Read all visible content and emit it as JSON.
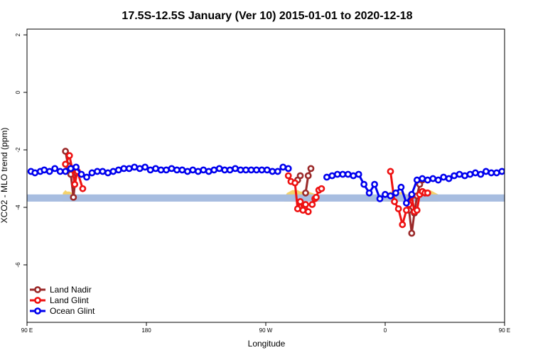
{
  "chart_data": {
    "type": "line",
    "title": "17.5S-12.5S January (Ver 10)   2015-01-01 to 2020-12-18",
    "xlabel": "Longitude",
    "ylabel": "XCO2 - MLO trend (ppm)",
    "xlim": [
      90,
      450
    ],
    "ylim": [
      -8,
      2.2
    ],
    "x_ticks": [
      {
        "value": 90,
        "label": "90 E"
      },
      {
        "value": 180,
        "label": "180"
      },
      {
        "value": 270,
        "label": "90 W"
      },
      {
        "value": 360,
        "label": "0"
      },
      {
        "value": 450,
        "label": "90 E"
      },
      {
        "value": 540,
        "label": "180"
      }
    ],
    "y_ticks": [
      {
        "value": 2,
        "label": "2"
      },
      {
        "value": 0,
        "label": "0"
      },
      {
        "value": -2,
        "label": "-2"
      },
      {
        "value": -4,
        "label": "-4"
      },
      {
        "value": -6,
        "label": "-6"
      }
    ],
    "legend_position": "bottom-left",
    "band": {
      "ymin": -3.8,
      "ymax": -3.55,
      "color": "#a7bde0"
    },
    "highlight_color": "#f5d26b",
    "highlight_regions": [
      {
        "x": [
          117,
          119,
          120,
          122,
          124,
          126
        ],
        "top": [
          -3.5,
          -3.4,
          -3.45,
          -3.45,
          -3.5,
          -3.55
        ]
      },
      {
        "x": [
          284,
          286,
          288,
          290,
          292,
          294,
          296,
          298,
          300,
          302,
          305,
          308
        ],
        "top": [
          -3.65,
          -3.5,
          -3.45,
          -3.4,
          -3.4,
          -3.4,
          -3.45,
          -3.45,
          -3.4,
          -3.45,
          -3.5,
          -3.55
        ]
      },
      {
        "x": [
          360,
          362,
          364,
          366,
          368,
          370,
          372,
          374,
          376
        ],
        "top": [
          -3.55,
          -3.5,
          -3.45,
          -3.45,
          -3.5,
          -3.5,
          -3.45,
          -3.5,
          -3.55
        ]
      },
      {
        "x": [
          388,
          390,
          392,
          394,
          396,
          398,
          400
        ],
        "top": [
          -3.55,
          -3.5,
          -3.45,
          -3.4,
          -3.45,
          -3.5,
          -3.55
        ]
      },
      {
        "x": [
          484,
          486,
          488,
          490,
          492
        ],
        "top": [
          -3.5,
          -3.45,
          -3.45,
          -3.5,
          -3.55
        ]
      }
    ],
    "series": [
      {
        "name": "Land Nadir",
        "color": "#9b2a2a",
        "segments": [
          {
            "x": [
              119,
              121,
              123,
              125,
              127
            ],
            "y": [
              -2.05,
              -2.55,
              -2.85,
              -3.65,
              -2.8
            ]
          },
          {
            "x": [
              294,
              296
            ],
            "y": [
              -3.05,
              -2.9
            ]
          },
          {
            "x": [
              300,
              302,
              304
            ],
            "y": [
              -3.5,
              -2.9,
              -2.65
            ]
          },
          {
            "x": [
              378,
              380,
              382,
              384,
              386,
              388
            ],
            "y": [
              -4.1,
              -4.9,
              -4.2,
              -3.6,
              -3.2,
              -3.05
            ]
          },
          {
            "x": [
              459,
              461,
              463,
              465,
              467
            ],
            "y": [
              -2.05,
              -2.55,
              -2.85,
              -3.65,
              -2.8
            ]
          }
        ]
      },
      {
        "name": "Land Glint",
        "color": "#ee1111",
        "segments": [
          {
            "x": [
              119,
              122,
              124,
              126,
              128,
              132
            ],
            "y": [
              -2.5,
              -2.2,
              -2.65,
              -3.2,
              -2.75,
              -3.35
            ]
          },
          {
            "x": [
              287,
              289,
              292,
              294,
              296,
              298,
              300,
              302
            ],
            "y": [
              -2.9,
              -3.1,
              -3.15,
              -4.05,
              -3.8,
              -4.1,
              -3.9,
              -4.15
            ]
          },
          {
            "x": [
              305,
              307,
              308,
              310,
              312
            ],
            "y": [
              -3.9,
              -3.7,
              -3.65,
              -3.4,
              -3.35
            ]
          },
          {
            "x": [
              364,
              367,
              370,
              373,
              376,
              378,
              380,
              382,
              384,
              386,
              388
            ],
            "y": [
              -2.75,
              -3.8,
              -4.05,
              -4.6,
              -4.1,
              -3.9,
              -3.6,
              -4.15,
              -4.1,
              -3.55,
              -3.45
            ]
          },
          {
            "x": [
              388,
              390,
              392
            ],
            "y": [
              -3.45,
              -3.5,
              -3.5
            ]
          },
          {
            "x": [
              462,
              464,
              466,
              467,
              469,
              471,
              473
            ],
            "y": [
              -2.5,
              -2.2,
              -2.65,
              -3.2,
              -2.75,
              -2.85,
              -3.35
            ]
          }
        ]
      },
      {
        "name": "Ocean Glint",
        "color": "#0000ee",
        "segments": [
          {
            "x": [
              93,
              96,
              100,
              103,
              107,
              111,
              115,
              119,
              123,
              127,
              131,
              135,
              139,
              143,
              147,
              151,
              155,
              159,
              163,
              167,
              171,
              175,
              179,
              183,
              187,
              191,
              195,
              199,
              203,
              207,
              211,
              215,
              219,
              223,
              227,
              231,
              235,
              239,
              243,
              247,
              251,
              255,
              259,
              263,
              267,
              271,
              275,
              279,
              283,
              287
            ],
            "y": [
              -2.75,
              -2.8,
              -2.75,
              -2.7,
              -2.75,
              -2.65,
              -2.75,
              -2.75,
              -2.65,
              -2.6,
              -2.85,
              -2.95,
              -2.8,
              -2.75,
              -2.75,
              -2.8,
              -2.75,
              -2.7,
              -2.65,
              -2.65,
              -2.6,
              -2.65,
              -2.6,
              -2.7,
              -2.65,
              -2.7,
              -2.7,
              -2.65,
              -2.7,
              -2.7,
              -2.75,
              -2.7,
              -2.75,
              -2.7,
              -2.75,
              -2.7,
              -2.65,
              -2.7,
              -2.7,
              -2.65,
              -2.7,
              -2.7,
              -2.7,
              -2.7,
              -2.7,
              -2.7,
              -2.75,
              -2.75,
              -2.6,
              -2.65
            ]
          },
          {
            "x": [
              316,
              320,
              324,
              328,
              332,
              336,
              340,
              344,
              348,
              352,
              356,
              360,
              364,
              368,
              372,
              376,
              380,
              384,
              388,
              392,
              396,
              400,
              404,
              408,
              412,
              416,
              420,
              424,
              428,
              432,
              436,
              440,
              444,
              448,
              452,
              456,
              460,
              464,
              468,
              472,
              476,
              480,
              484,
              488,
              492,
              496,
              500
            ],
            "y": [
              -2.95,
              -2.9,
              -2.85,
              -2.85,
              -2.85,
              -2.9,
              -2.85,
              -3.2,
              -3.5,
              -3.2,
              -3.7,
              -3.55,
              -3.6,
              -3.5,
              -3.3,
              -3.85,
              -3.55,
              -3.05,
              -3.0,
              -3.05,
              -3.0,
              -3.05,
              -2.95,
              -3.0,
              -2.9,
              -2.85,
              -2.9,
              -2.85,
              -2.8,
              -2.85,
              -2.75,
              -2.8,
              -2.8,
              -2.75,
              -2.7,
              -2.7,
              -2.65,
              -2.7,
              -2.75,
              -2.6,
              -2.8,
              -2.75,
              -2.9,
              -2.8,
              -2.75,
              -2.8,
              -2.7
            ]
          }
        ]
      }
    ]
  }
}
